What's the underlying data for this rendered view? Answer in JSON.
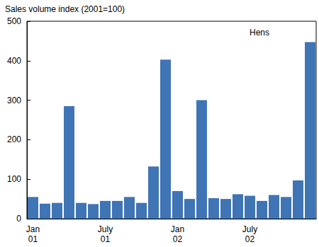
{
  "chart_data": {
    "type": "bar",
    "ylabel": "Sales volume index (2001=100)",
    "annotations": [
      "Hens"
    ],
    "categories": [
      "Jan\n01",
      null,
      null,
      null,
      null,
      null,
      "July\n01",
      null,
      null,
      null,
      null,
      null,
      "Jan\n02",
      null,
      null,
      null,
      null,
      null,
      "July\n02",
      null,
      null,
      null,
      null,
      null
    ],
    "values": [
      55,
      38,
      40,
      285,
      40,
      37,
      45,
      45,
      55,
      40,
      132,
      403,
      70,
      50,
      300,
      52,
      50,
      62,
      58,
      45,
      60,
      55,
      97,
      447
    ],
    "color": "#3f74b5",
    "ylim": [
      0,
      500
    ],
    "yticks": [
      0,
      100,
      200,
      300,
      400,
      500
    ],
    "grid": false
  }
}
